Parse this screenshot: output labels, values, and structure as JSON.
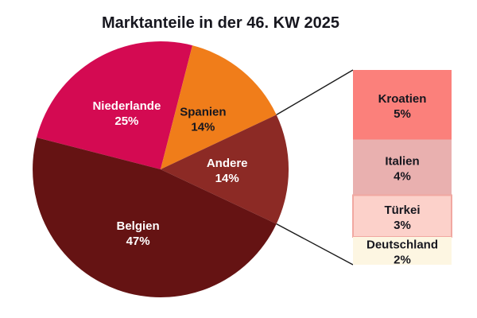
{
  "colors": {
    "background": "#ffffff",
    "text_dark": "#17171f",
    "text_light": "#ffffff",
    "connector_line": "#1a1a1a"
  },
  "chart_data": {
    "type": "pie",
    "title": "Marktanteile in der 46. KW 2025",
    "start_angle_deg": 165.6,
    "direction": "clockwise",
    "legend_position": "none",
    "slices": [
      {
        "id": "niederlande",
        "label": "Niederlande",
        "value": 25,
        "display": "25%",
        "color": "#d40a52",
        "label_color": "#ffffff"
      },
      {
        "id": "spanien",
        "label": "Spanien",
        "value": 14,
        "display": "14%",
        "color": "#f07d1a",
        "label_color": "#17171f"
      },
      {
        "id": "andere",
        "label": "Andere",
        "value": 14,
        "display": "14%",
        "color": "#8c2a25",
        "label_color": "#ffffff"
      },
      {
        "id": "belgien",
        "label": "Belgien",
        "value": 47,
        "display": "47%",
        "color": "#651313",
        "label_color": "#ffffff"
      }
    ],
    "breakout": {
      "parent_id": "andere",
      "segments": [
        {
          "id": "kroatien",
          "label": "Kroatien",
          "value": 5,
          "display": "5%",
          "color": "#fb807b",
          "border": "",
          "label_color": "#17171f"
        },
        {
          "id": "italien",
          "label": "Italien",
          "value": 4,
          "display": "4%",
          "color": "#e9b0af",
          "border": "",
          "label_color": "#17171f"
        },
        {
          "id": "tuerkei",
          "label": "Türkei",
          "value": 3,
          "display": "3%",
          "color": "#fcd1ca",
          "border": "#f1a8a1",
          "label_color": "#17171f"
        },
        {
          "id": "deutschland",
          "label": "Deutschland",
          "value": 2,
          "display": "2%",
          "color": "#fdf6e2",
          "border": "",
          "label_color": "#17171f"
        }
      ]
    }
  }
}
